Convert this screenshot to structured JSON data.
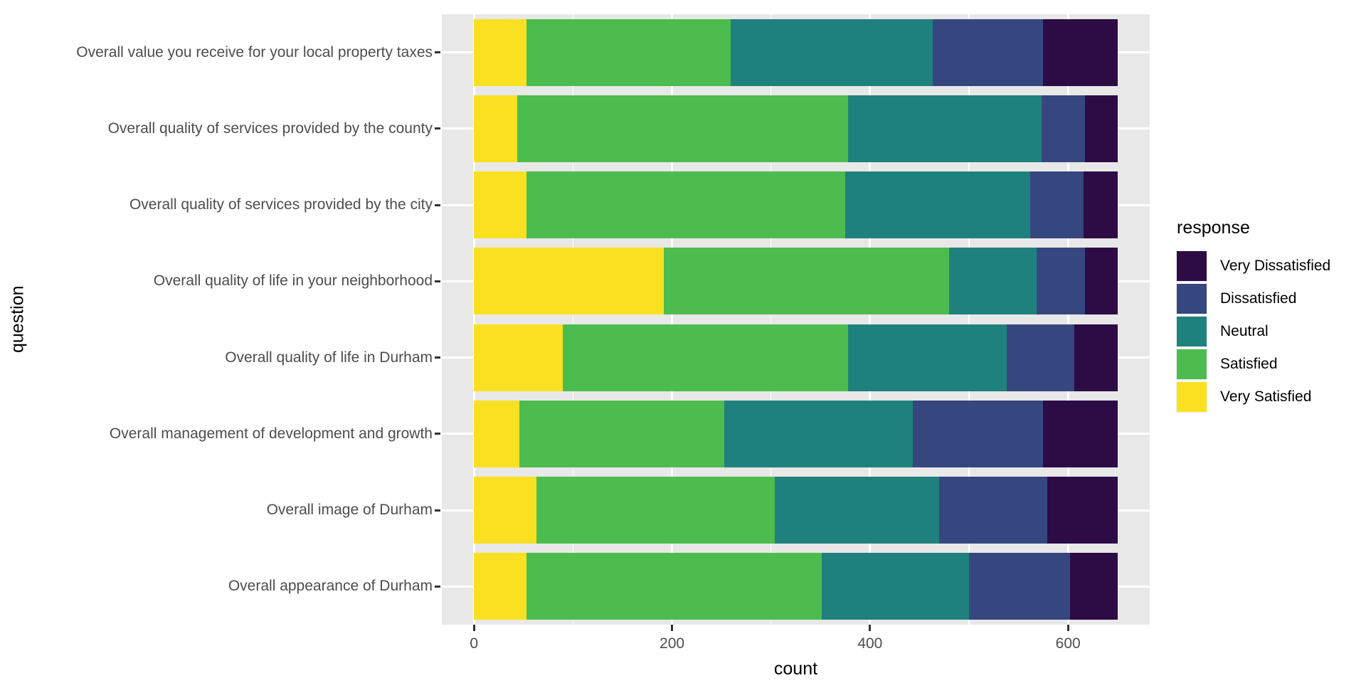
{
  "chart_data": {
    "type": "bar",
    "orientation": "horizontal",
    "stacked": true,
    "title": "",
    "xlabel": "count",
    "ylabel": "question",
    "legend_title": "response",
    "legend_position": "right",
    "grid": "white major/minor vertical gridlines and white horizontal category gridlines on grey panel",
    "xlim": [
      -32.5,
      682.5
    ],
    "x_ticks": [
      0,
      200,
      400,
      600
    ],
    "x_tick_labels": [
      "0",
      "200",
      "400",
      "600"
    ],
    "x_minor_ticks": [
      100,
      300,
      500
    ],
    "categories": [
      "Overall value you receive for your local property taxes",
      "Overall quality of services provided by the county",
      "Overall quality of services provided by the city",
      "Overall quality of life in your neighborhood",
      "Overall quality of life in Durham",
      "Overall management of development and growth",
      "Overall image of Durham",
      "Overall appearance of Durham"
    ],
    "stack_order_left_to_right": [
      "Very Satisfied",
      "Satisfied",
      "Neutral",
      "Dissatisfied",
      "Very Dissatisfied"
    ],
    "series": [
      {
        "name": "Very Dissatisfied",
        "color": "#2D0B45",
        "values": [
          75,
          33,
          34,
          33,
          44,
          75,
          71,
          48
        ]
      },
      {
        "name": "Dissatisfied",
        "color": "#36477F",
        "values": [
          112,
          44,
          54,
          49,
          68,
          132,
          109,
          102
        ]
      },
      {
        "name": "Neutral",
        "color": "#1F817D",
        "values": [
          204,
          195,
          187,
          88,
          160,
          190,
          166,
          149
        ]
      },
      {
        "name": "Satisfied",
        "color": "#4DBC4F",
        "values": [
          206,
          334,
          322,
          288,
          288,
          207,
          241,
          298
        ]
      },
      {
        "name": "Very Satisfied",
        "color": "#F9E121",
        "values": [
          53,
          44,
          53,
          192,
          90,
          46,
          63,
          53
        ]
      }
    ],
    "approx_total_per_category": 650
  },
  "axes": {
    "x_title": "count",
    "y_title": "question"
  },
  "legend": {
    "title": "response",
    "items": [
      "Very Dissatisfied",
      "Dissatisfied",
      "Neutral",
      "Satisfied",
      "Very Satisfied"
    ]
  },
  "colors": {
    "background": "#FFFFFF",
    "panel_background": "#E8E8E8",
    "gridline": "#FFFFFF",
    "axis_text": "#4D4D4D",
    "tick_mark": "#333333",
    "axis_title": "#000000"
  }
}
